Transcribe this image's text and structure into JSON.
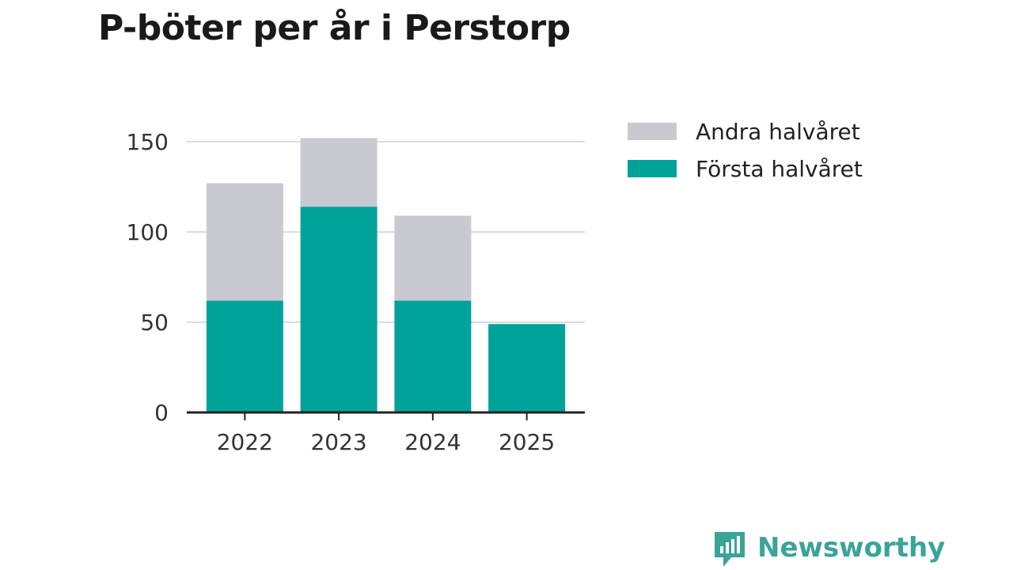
{
  "chart_data": {
    "type": "bar",
    "stacked": true,
    "title": "P-böter per år i Perstorp",
    "xlabel": "",
    "ylabel": "",
    "categories": [
      "2022",
      "2023",
      "2024",
      "2025"
    ],
    "series": [
      {
        "name": "Första halvåret",
        "color": "#00a39a",
        "values": [
          62,
          114,
          62,
          49
        ]
      },
      {
        "name": "Andra halvåret",
        "color": "#c9c9d1",
        "values": [
          65,
          38,
          47,
          0
        ]
      }
    ],
    "ylim": [
      0,
      150
    ],
    "yticks": [
      0,
      50,
      100,
      150
    ],
    "grid": true,
    "legend_position": "top-right",
    "legend_order": [
      "Andra halvåret",
      "Första halvåret"
    ]
  },
  "brand": {
    "name": "Newsworthy",
    "color": "#3aa39a",
    "icon": "bar-chart-bubble-icon"
  }
}
